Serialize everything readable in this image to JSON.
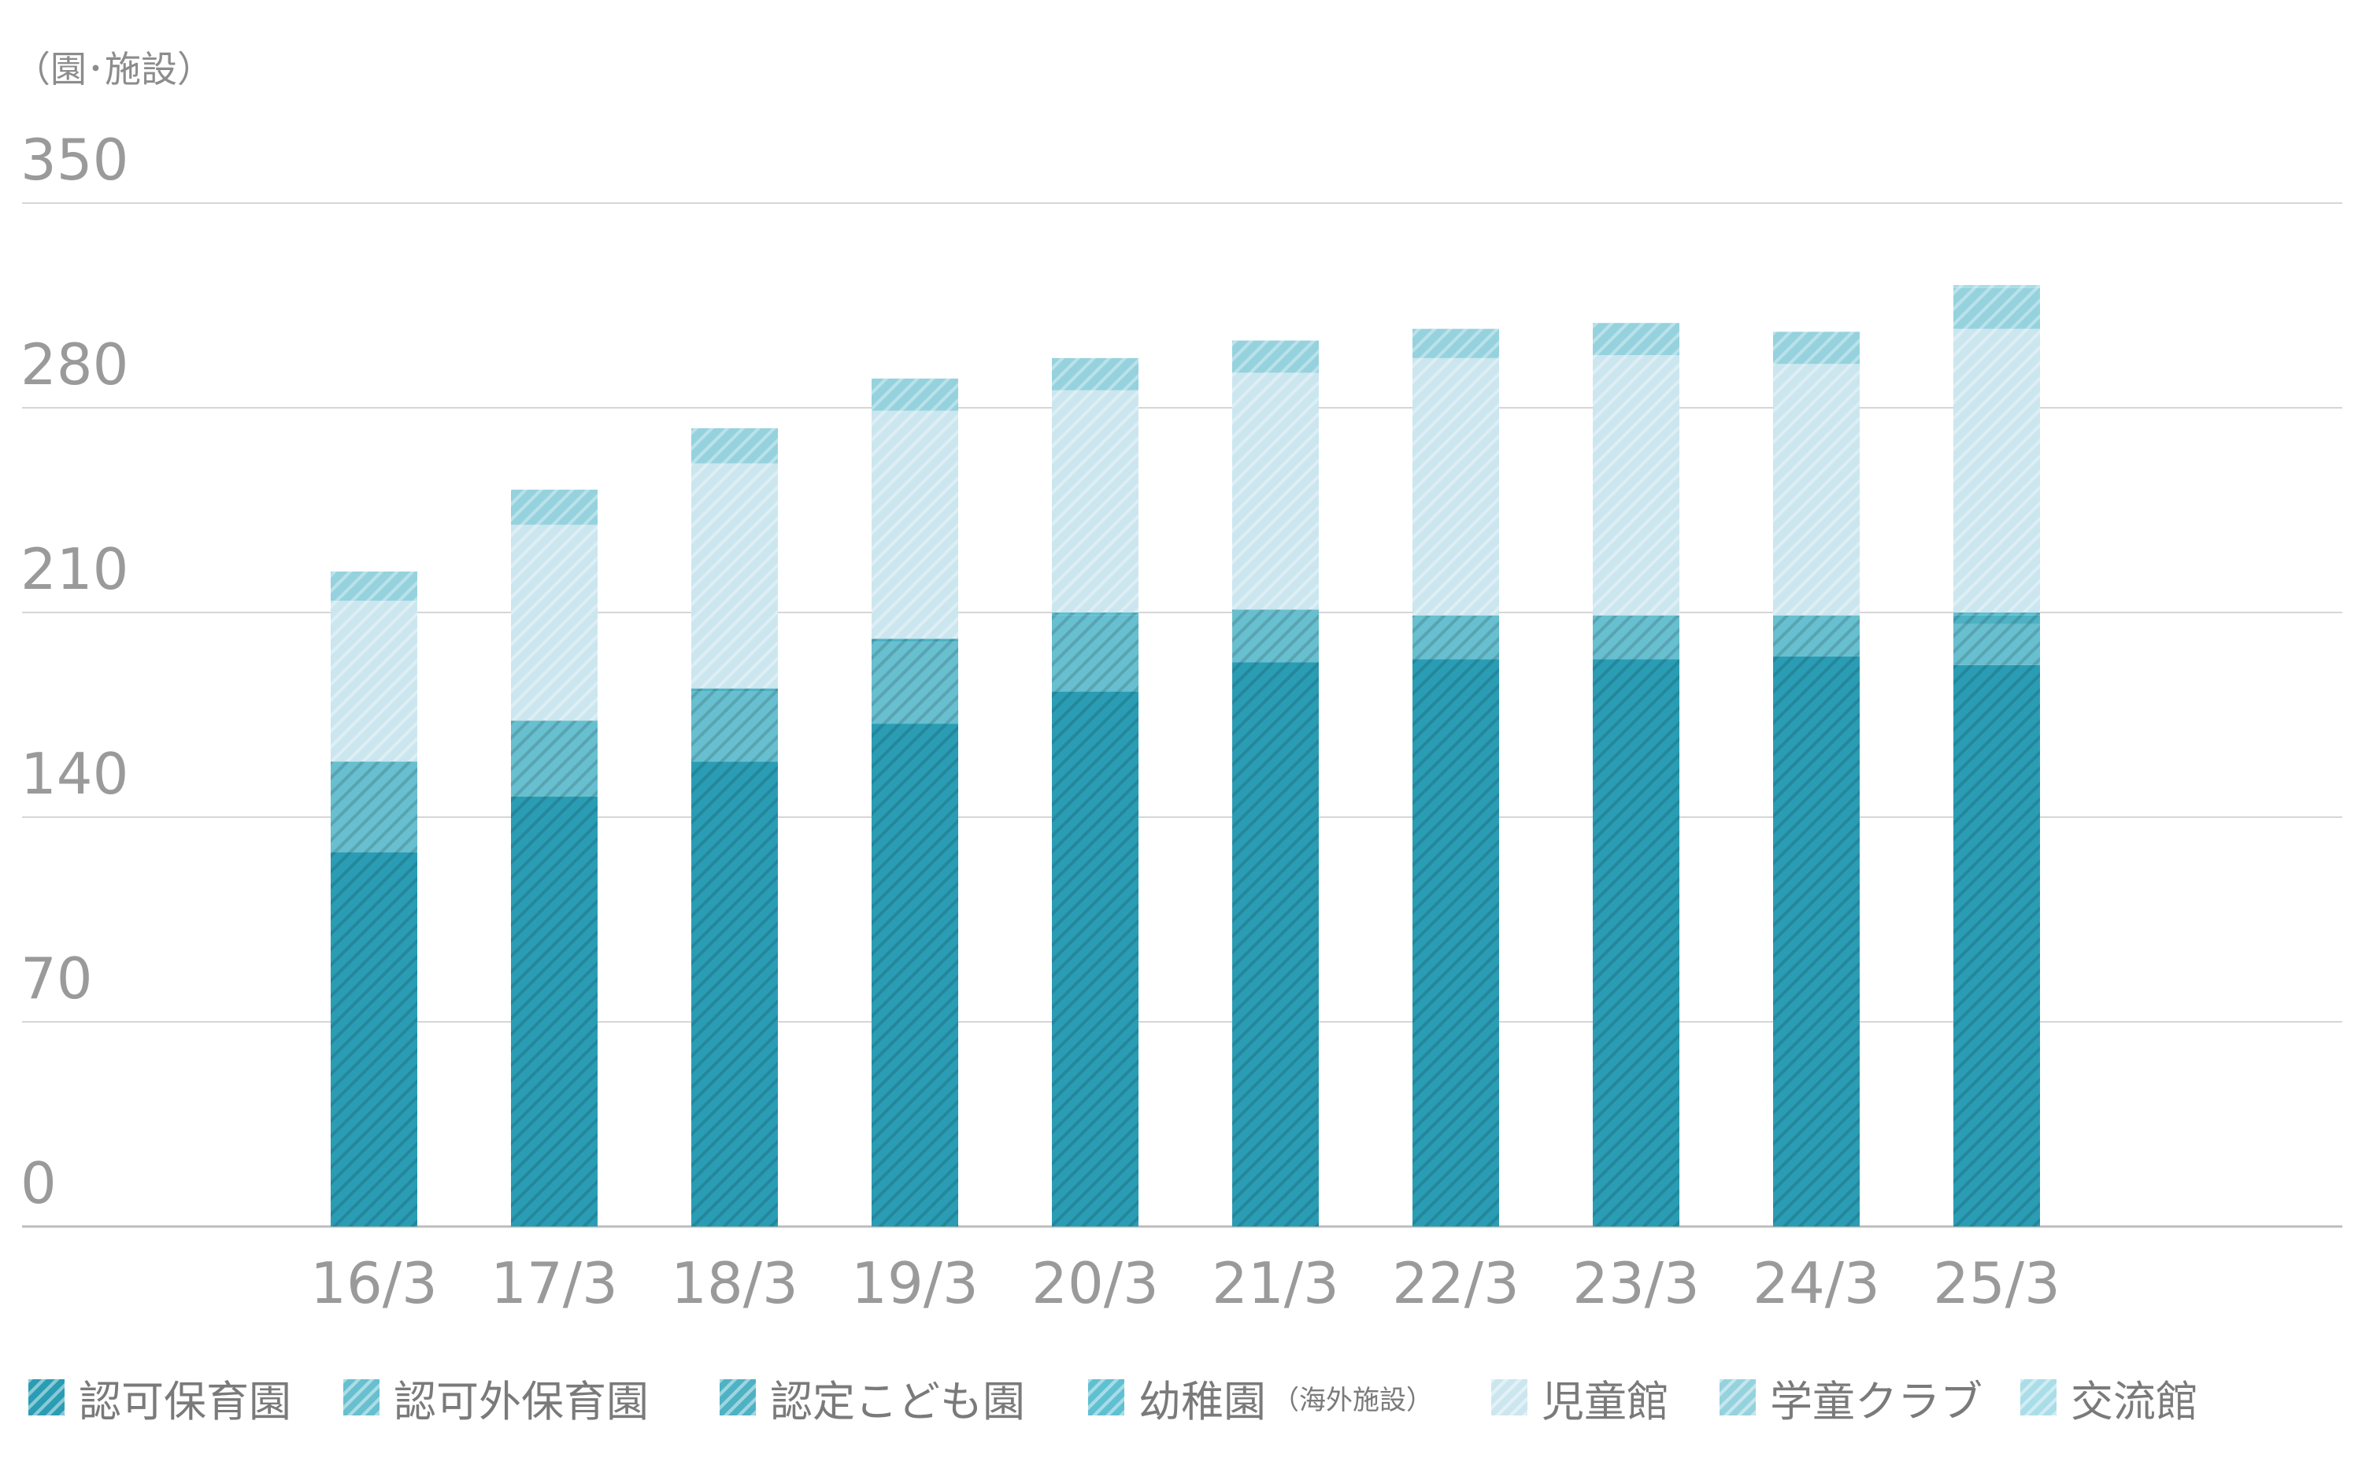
{
  "chart_data": {
    "type": "bar",
    "stacked": true,
    "unit_label": "（園･施設）",
    "ylim": [
      0,
      350
    ],
    "yticks": [
      "0",
      "70",
      "140",
      "210",
      "280",
      "350"
    ],
    "ytick_values": [
      0,
      70,
      140,
      210,
      280,
      350
    ],
    "grid": true,
    "legend_position": "bottom",
    "categories": [
      "16/3",
      "17/3",
      "18/3",
      "19/3",
      "20/3",
      "21/3",
      "22/3",
      "23/3",
      "24/3",
      "25/3"
    ],
    "series": [
      {
        "name": "認可保育園",
        "color": "#2a9db4",
        "values": [
          128,
          147,
          159,
          172,
          183,
          193,
          194,
          194,
          195,
          192
        ]
      },
      {
        "name": "認可外保育園",
        "color": "#67bfcf",
        "values": [
          31,
          26,
          24,
          28,
          26,
          18,
          15,
          15,
          14,
          14
        ]
      },
      {
        "name": "認定こども園",
        "color": "#4eb2c4",
        "values": [
          0,
          0,
          1,
          1,
          0,
          0,
          0,
          0,
          0,
          3
        ]
      },
      {
        "name": "幼稚園",
        "note": "（海外施設）",
        "color": "#5fc0d1",
        "values": [
          0,
          0,
          0,
          0,
          1,
          0,
          0,
          0,
          0,
          1
        ]
      },
      {
        "name": "児童館",
        "color": "#cbe6ee",
        "values": [
          55,
          67,
          77,
          78,
          76,
          81,
          88,
          89,
          86,
          97
        ]
      },
      {
        "name": "学童クラブ",
        "color": "#95d2de",
        "values": [
          10,
          12,
          12,
          11,
          11,
          11,
          10,
          11,
          11,
          14
        ]
      },
      {
        "name": "交流館",
        "color": "#a9dde8",
        "values": [
          0,
          0,
          0,
          0,
          0,
          0,
          0,
          0,
          0,
          1
        ]
      }
    ]
  }
}
